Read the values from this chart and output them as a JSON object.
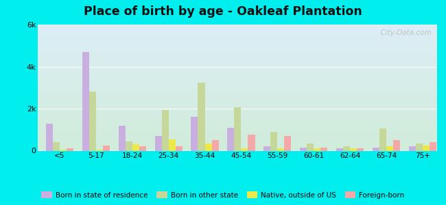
{
  "title": "Place of birth by age - Oakleaf Plantation",
  "categories": [
    "<5",
    "5-17",
    "18-24",
    "25-34",
    "35-44",
    "45-54",
    "55-59",
    "60-61",
    "62-64",
    "65-74",
    "75+"
  ],
  "series": {
    "Born in state of residence": [
      1300,
      4700,
      1200,
      700,
      1600,
      1100,
      200,
      150,
      100,
      150,
      200
    ],
    "Born in other state": [
      400,
      2800,
      450,
      1950,
      3250,
      2050,
      900,
      350,
      200,
      1050,
      350
    ],
    "Native, outside of US": [
      50,
      50,
      300,
      550,
      350,
      100,
      100,
      100,
      100,
      200,
      250
    ],
    "Foreign-born": [
      100,
      250,
      200,
      200,
      500,
      750,
      700,
      150,
      100,
      500,
      400
    ]
  },
  "colors": {
    "Born in state of residence": "#c9aee0",
    "Born in other state": "#c5d89a",
    "Native, outside of US": "#ede84a",
    "Foreign-born": "#f4a8a8"
  },
  "ylim": [
    0,
    6000
  ],
  "yticks": [
    0,
    2000,
    4000,
    6000
  ],
  "ytick_labels": [
    "0",
    "2k",
    "4k",
    "6k"
  ],
  "outer_bg": "#00eeee",
  "watermark": "  City-Data.com",
  "bar_width": 0.19,
  "title_fontsize": 12.5
}
